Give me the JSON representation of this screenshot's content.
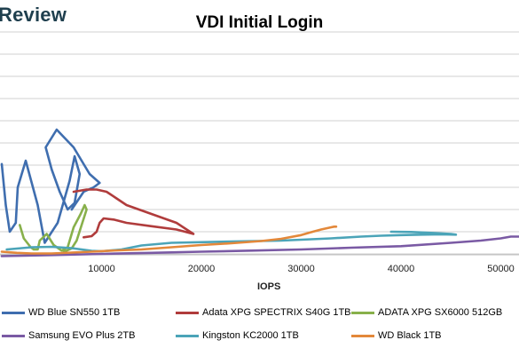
{
  "brand": "Review",
  "chart_data": {
    "type": "line",
    "title": "VDI Initial Login",
    "xlabel": "IOPS",
    "ylabel": "",
    "x_ticks": [
      10000,
      20000,
      30000,
      40000,
      50000
    ],
    "x_tick_labels": [
      "10000",
      "20000",
      "30000",
      "40000",
      "50000"
    ],
    "xlim": [
      0,
      52000
    ],
    "ylim": [
      0,
      100
    ],
    "grid": true,
    "legend_position": "bottom",
    "series": [
      {
        "name": "WD Blue SN550 1TB",
        "color": "#3f6eaf",
        "x": [
          0,
          400,
          800,
          1400,
          1600,
          2400,
          3600,
          4300,
          5600,
          6800,
          7300,
          7800,
          7300,
          6600,
          5800,
          5000,
          4400,
          5500,
          7200,
          8800,
          9800,
          9200,
          8200,
          7000
        ],
        "y": [
          40.5,
          22,
          10,
          14,
          30,
          42,
          22,
          5,
          14,
          33,
          44,
          36,
          23,
          20,
          28,
          38,
          48,
          56,
          48,
          36,
          32,
          30,
          28,
          20
        ]
      },
      {
        "name": "Adata XPG SPECTRIX S40G 1TB",
        "color": "#b03c3c",
        "x": [
          7200,
          8500,
          9500,
          10500,
          11500,
          12500,
          15000,
          17500,
          19200,
          17500,
          15000,
          12500,
          11200,
          10200,
          9800,
          9500,
          9000,
          8200
        ],
        "y": [
          28,
          29,
          29,
          28,
          25,
          22,
          18,
          14,
          9,
          11,
          12.5,
          14,
          15.5,
          16,
          14,
          10,
          8,
          7.5
        ]
      },
      {
        "name": "ADATA XPG SX6000 512GB",
        "color": "#88b04b",
        "x": [
          1800,
          2200,
          2900,
          3200,
          3600,
          3800,
          4500,
          5200,
          6000,
          6600,
          7200,
          7900,
          8300,
          8500,
          8000,
          7500,
          7000,
          6500,
          6200
        ],
        "y": [
          13,
          7,
          3,
          2,
          2,
          6,
          9,
          4,
          1.5,
          3,
          12,
          18,
          22,
          20,
          13,
          6,
          2.5,
          1.5,
          1
        ]
      },
      {
        "name": "Samsung EVO Plus 2TB",
        "color": "#7a5aa4",
        "x": [
          0,
          5000,
          10000,
          15000,
          20000,
          25000,
          30000,
          35000,
          40000,
          45000,
          48000,
          50000,
          51000,
          52000
        ],
        "y": [
          -1,
          -0.5,
          0,
          0.5,
          1,
          1.5,
          2,
          2.8,
          3.5,
          5,
          6,
          7,
          7.8,
          7.8
        ]
      },
      {
        "name": "Kingston KC2000 1TB",
        "color": "#4ba4b8",
        "x": [
          500,
          3000,
          5000,
          7000,
          9000,
          10000,
          12000,
          14000,
          17000,
          22000,
          28000,
          33000,
          36000,
          38000,
          40000,
          42000,
          44000,
          45500,
          45000,
          43000,
          41000,
          39000
        ],
        "y": [
          2,
          3,
          3.2,
          2.6,
          1.4,
          1.2,
          2,
          3.8,
          5,
          5.5,
          6,
          7,
          7.8,
          8.2,
          8.5,
          8.7,
          8.8,
          8.7,
          9,
          9.5,
          9.9,
          10
        ]
      },
      {
        "name": "WD Black 1TB",
        "color": "#e3883a",
        "x": [
          0,
          1500,
          3000,
          5000,
          7000,
          9000,
          11000,
          14000,
          17000,
          20000,
          23000,
          26000,
          28000,
          30000,
          31000,
          32000,
          33000,
          33300,
          33500
        ],
        "y": [
          1,
          0.5,
          0.2,
          0.2,
          0.6,
          1,
          1.5,
          2,
          3,
          4,
          4.8,
          5.8,
          6.8,
          8.5,
          9.8,
          11,
          12,
          12.3,
          12.3
        ]
      }
    ]
  }
}
